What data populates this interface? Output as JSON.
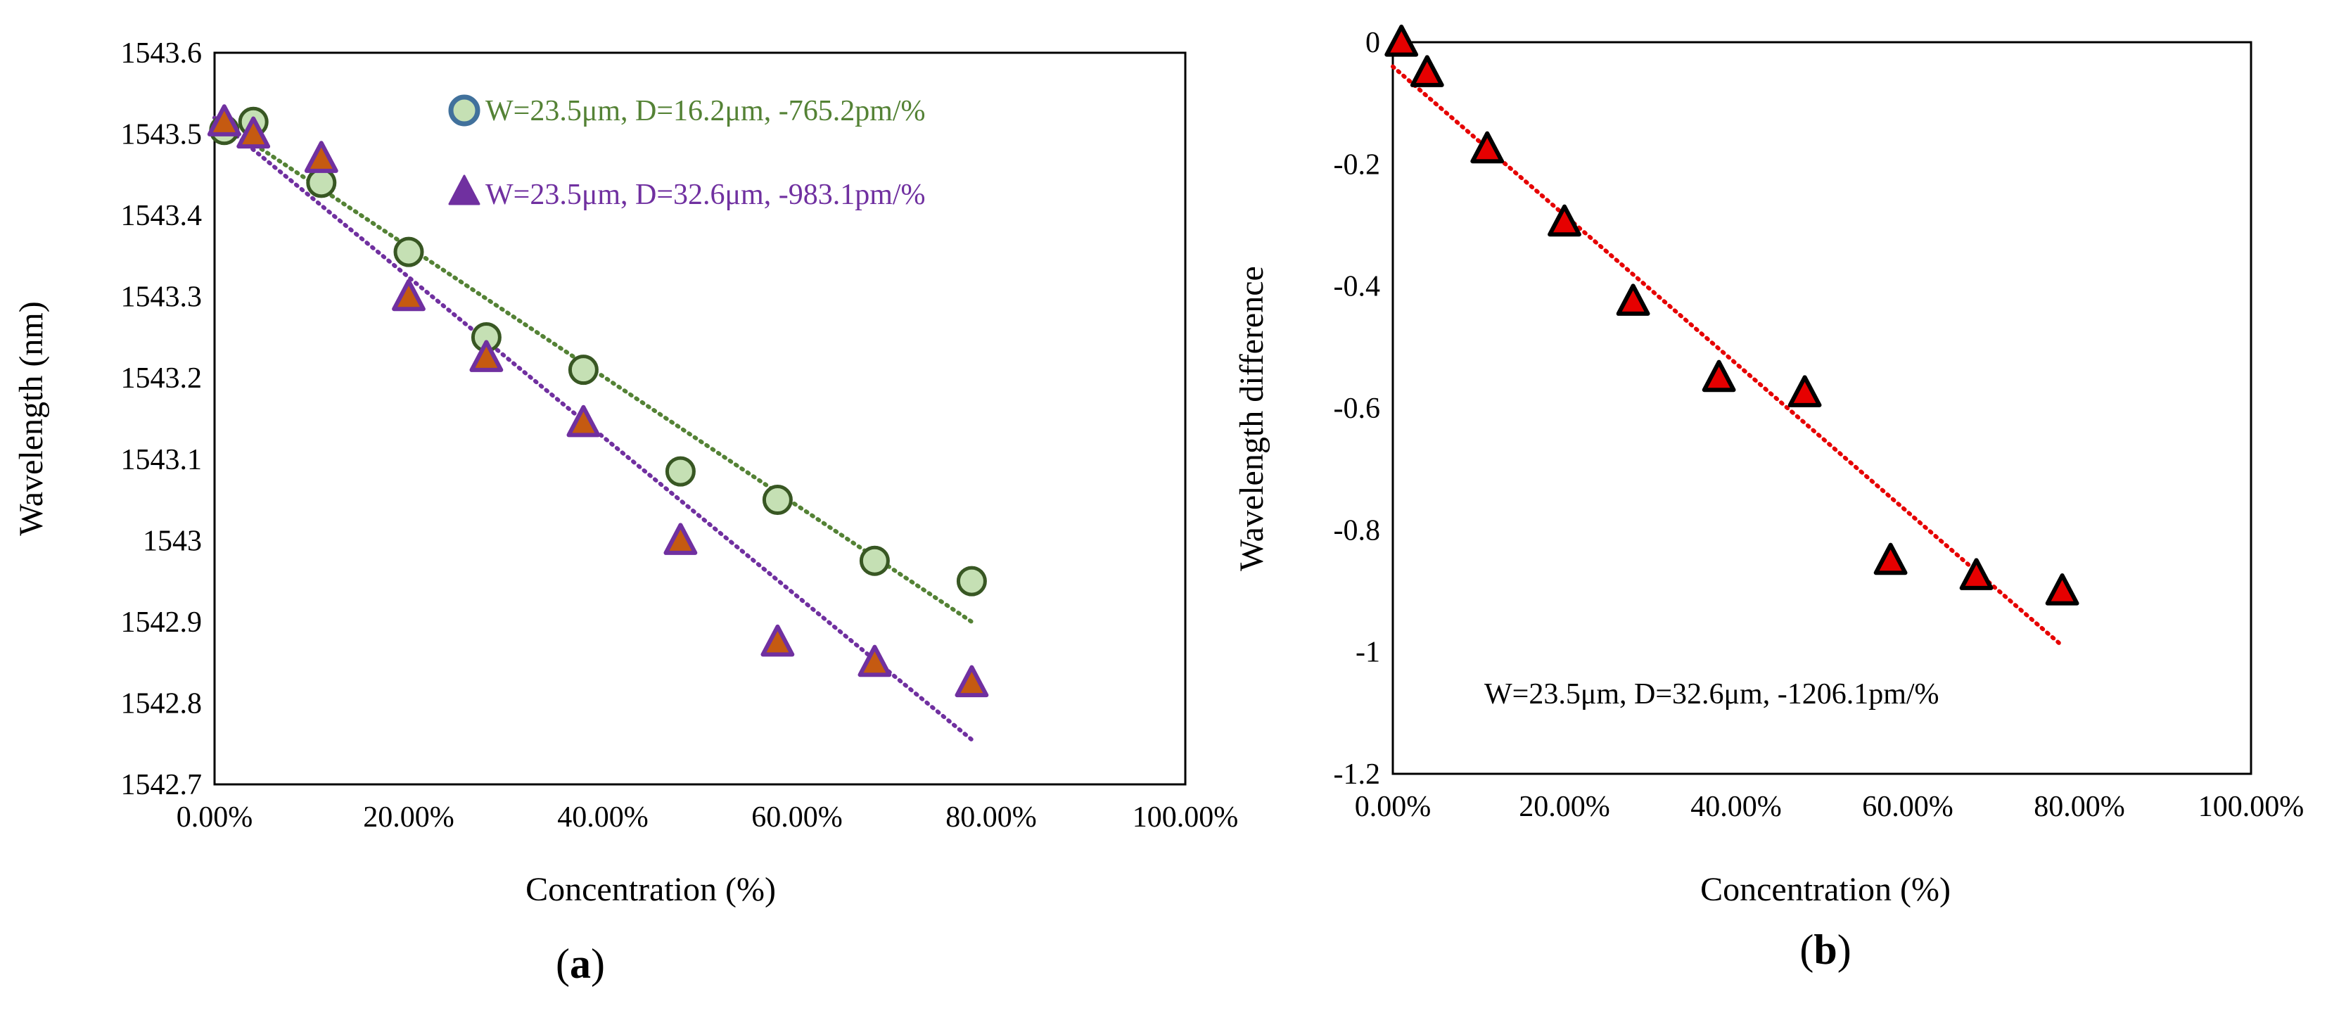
{
  "chart_data": [
    {
      "type": "scatter",
      "panel_label": "a",
      "xlabel": "Concentration (%)",
      "ylabel": "Wavelength (nm)",
      "xlim": [
        0,
        100
      ],
      "ylim": [
        1542.7,
        1543.6
      ],
      "x_ticks": [
        "0.00%",
        "20.00%",
        "40.00%",
        "60.00%",
        "80.00%",
        "100.00%"
      ],
      "y_ticks": [
        "1542.7",
        "1542.8",
        "1542.9",
        "1543",
        "1543.1",
        "1543.2",
        "1543.3",
        "1543.4",
        "1543.5",
        "1543.6"
      ],
      "grid": false,
      "legend_position": "top-right",
      "series": [
        {
          "name": "W=23.5μm, D=16.2μm, -765.2pm/%",
          "marker": "circle",
          "color": "#c5e0b4",
          "edge_color": "#385723",
          "legend_edge_color": "#41719c",
          "trend_color": "#548235",
          "x": [
            1,
            4,
            11,
            20,
            28,
            38,
            48,
            58,
            68,
            78
          ],
          "y": [
            1543.505,
            1543.515,
            1543.44,
            1543.355,
            1543.25,
            1543.21,
            1543.085,
            1543.05,
            1542.975,
            1542.95
          ],
          "trendline": {
            "x": [
              0,
              78
            ],
            "y": [
              1543.52,
              1542.9
            ]
          }
        },
        {
          "name": "W=23.5μm, D=32.6μm, -983.1pm/%",
          "marker": "triangle",
          "color": "#c55a11",
          "edge_color": "#7030a0",
          "trend_color": "#7030a0",
          "x": [
            1,
            4,
            11,
            20,
            28,
            38,
            48,
            58,
            68,
            78
          ],
          "y": [
            1543.515,
            1543.5,
            1543.47,
            1543.3,
            1543.225,
            1543.145,
            1543.0,
            1542.875,
            1542.85,
            1542.825
          ],
          "trendline": {
            "x": [
              0,
              78
            ],
            "y": [
              1543.52,
              1542.755
            ]
          }
        }
      ]
    },
    {
      "type": "scatter",
      "panel_label": "b",
      "xlabel": "Concentration (%)",
      "ylabel": "Wavelength difference",
      "xlim": [
        0,
        100
      ],
      "ylim": [
        -1.2,
        0
      ],
      "x_ticks": [
        "0.00%",
        "20.00%",
        "40.00%",
        "60.00%",
        "80.00%",
        "100.00%"
      ],
      "y_ticks": [
        "0",
        "-0.2",
        "-0.4",
        "-0.6",
        "-0.8",
        "-1",
        "-1.2"
      ],
      "grid": false,
      "annotation": "W=23.5μm, D=32.6μm, -1206.1pm/%",
      "series": [
        {
          "marker": "triangle",
          "color": "#e60000",
          "edge_color": "#000000",
          "trend_color": "#e60000",
          "x": [
            1,
            4,
            11,
            20,
            28,
            38,
            48,
            58,
            68,
            78
          ],
          "y": [
            0,
            -0.05,
            -0.175,
            -0.295,
            -0.425,
            -0.55,
            -0.575,
            -0.85,
            -0.875,
            -0.9
          ],
          "trendline": {
            "x": [
              0,
              78
            ],
            "y": [
              -0.04,
              -0.99
            ]
          }
        }
      ]
    }
  ]
}
